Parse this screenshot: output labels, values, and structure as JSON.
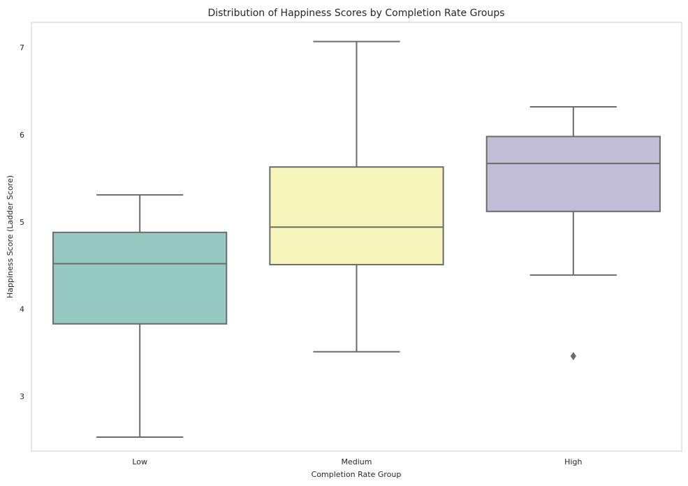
{
  "chart_data": {
    "type": "box",
    "title": "Distribution of Happiness Scores by Completion Rate Groups",
    "xlabel": "Completion Rate Group",
    "ylabel": "Happiness Score (Ladder Score)",
    "categories": [
      "Low",
      "Medium",
      "High"
    ],
    "ylim": [
      2.37,
      7.29
    ],
    "yticks": [
      3,
      4,
      5,
      6,
      7
    ],
    "grid": false,
    "boxes": [
      {
        "category": "Low",
        "whisker_low": 2.53,
        "q1": 3.83,
        "median": 4.52,
        "q3": 4.88,
        "whisker_high": 5.31,
        "outliers": [],
        "color": "#96c9c1"
      },
      {
        "category": "Medium",
        "whisker_low": 3.51,
        "q1": 4.51,
        "median": 4.94,
        "q3": 5.63,
        "whisker_high": 7.07,
        "outliers": [],
        "color": "#f6f6bc"
      },
      {
        "category": "High",
        "whisker_low": 4.39,
        "q1": 5.12,
        "median": 5.67,
        "q3": 5.98,
        "whisker_high": 6.32,
        "outliers": [
          3.46
        ],
        "color": "#c1bdd7"
      }
    ],
    "line_color": "#6b6b6b",
    "frame_color": "#cccccc"
  }
}
